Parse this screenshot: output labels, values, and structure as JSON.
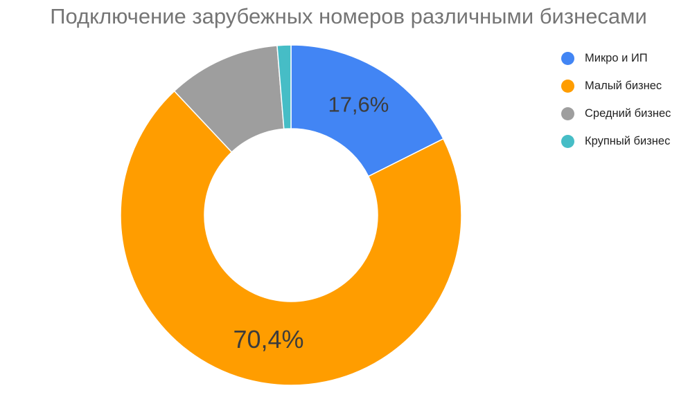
{
  "chart_data": {
    "type": "pie",
    "title": "Подключение зарубежных номеров различными бизнесами",
    "donut": true,
    "legend_position": "right",
    "slices": [
      {
        "name": "Микро и ИП",
        "value": 17.6,
        "label": "17,6%",
        "color": "#4285f4"
      },
      {
        "name": "Малый бизнес",
        "value": 70.4,
        "label": "70,4%",
        "color": "#ff9d00"
      },
      {
        "name": "Средний бизнес",
        "value": 10.7,
        "label": "",
        "color": "#9e9e9e"
      },
      {
        "name": "Крупный бизнес",
        "value": 1.3,
        "label": "",
        "color": "#46bdc6"
      }
    ]
  }
}
